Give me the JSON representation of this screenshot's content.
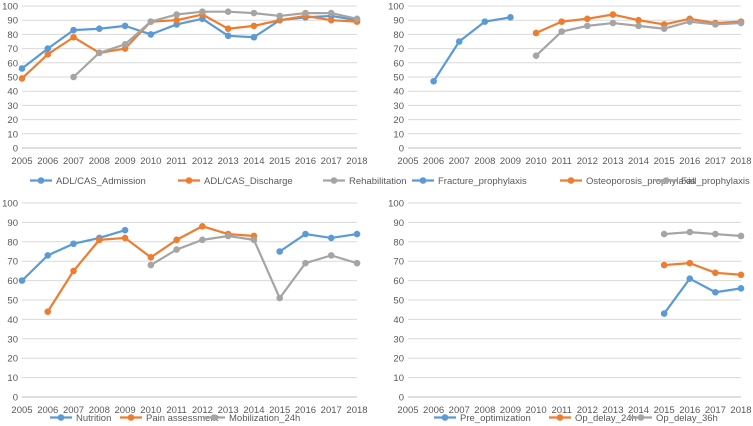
{
  "colors": {
    "blue": "#5B9BD5",
    "orange": "#ED7D31",
    "gray": "#A5A5A5",
    "grid": "#D9D9D9",
    "text": "#595959"
  },
  "chart_data": [
    {
      "type": "line",
      "title": "",
      "x": [
        "2005",
        "2006",
        "2007",
        "2008",
        "2009",
        "2010",
        "2011",
        "2012",
        "2013",
        "2014",
        "2015",
        "2016",
        "2017",
        "2018"
      ],
      "ylim": [
        0,
        100
      ],
      "yticks": [
        0,
        10,
        20,
        30,
        40,
        50,
        60,
        70,
        80,
        90,
        100
      ],
      "ytick_labels": [
        "0",
        "10",
        "20",
        "30",
        "40",
        "50",
        "60",
        "70",
        "80",
        "90",
        "100"
      ],
      "grid": true,
      "legend": "bottom",
      "series": [
        {
          "name": "ADL/CAS_Admission",
          "color": "blue",
          "values": [
            56,
            70,
            83,
            84,
            86,
            80,
            87,
            91,
            79,
            78,
            90,
            92,
            93,
            90
          ]
        },
        {
          "name": "ADL/CAS_Discharge",
          "color": "orange",
          "values": [
            49,
            66,
            78,
            67,
            70,
            89,
            90,
            94,
            84,
            86,
            90,
            93,
            90,
            89
          ]
        },
        {
          "name": "Rehabilitation",
          "color": "gray",
          "values": [
            null,
            null,
            50,
            67,
            73,
            89,
            94,
            96,
            96,
            95,
            93,
            95,
            95,
            91
          ]
        }
      ]
    },
    {
      "type": "line",
      "title": "",
      "x": [
        "2005",
        "2006",
        "2007",
        "2008",
        "2009",
        "2010",
        "2011",
        "2012",
        "2013",
        "2014",
        "2015",
        "2016",
        "2017",
        "2018"
      ],
      "ylim": [
        0,
        100
      ],
      "yticks": [
        0,
        10,
        20,
        30,
        40,
        50,
        60,
        70,
        80,
        90,
        100
      ],
      "ytick_labels": [
        "0",
        "10",
        "20",
        "30",
        "40",
        "50",
        "60",
        "70",
        "80",
        "90",
        "100"
      ],
      "grid": true,
      "legend": "bottom",
      "series": [
        {
          "name": "Fracture_prophylaxis",
          "color": "blue",
          "values": [
            null,
            47,
            75,
            89,
            92,
            null,
            null,
            null,
            null,
            null,
            null,
            null,
            null,
            null
          ]
        },
        {
          "name": "Osteoporosis_prophylaxis",
          "color": "orange",
          "values": [
            null,
            null,
            null,
            null,
            null,
            81,
            89,
            91,
            94,
            90,
            87,
            91,
            88,
            89
          ]
        },
        {
          "name": "Fall_prophylaxis",
          "color": "gray",
          "values": [
            null,
            null,
            null,
            null,
            null,
            65,
            82,
            86,
            88,
            86,
            84,
            89,
            87,
            88
          ]
        }
      ]
    },
    {
      "type": "line",
      "title": "",
      "x": [
        "2005",
        "2006",
        "2007",
        "2008",
        "2009",
        "2010",
        "2011",
        "2012",
        "2013",
        "2014",
        "2015",
        "2016",
        "2017",
        "2018"
      ],
      "ylim": [
        0,
        100
      ],
      "yticks": [
        0,
        10,
        20,
        30,
        40,
        50,
        60,
        70,
        80,
        90,
        100
      ],
      "ytick_labels": [
        "0",
        "10",
        "20",
        "30",
        "40",
        "50",
        "60",
        "70",
        "80",
        "90",
        "100"
      ],
      "grid": true,
      "legend": "bottom",
      "series": [
        {
          "name": "Nutrition",
          "color": "blue",
          "values": [
            60,
            73,
            79,
            82,
            86,
            null,
            null,
            null,
            null,
            null,
            75,
            84,
            82,
            84
          ]
        },
        {
          "name": "Pain assessment",
          "color": "orange",
          "values": [
            null,
            44,
            65,
            81,
            82,
            72,
            81,
            88,
            84,
            83,
            null,
            null,
            null,
            null
          ]
        },
        {
          "name": "Mobilization_24h",
          "color": "gray",
          "values": [
            null,
            null,
            null,
            null,
            null,
            68,
            76,
            81,
            83,
            81,
            51,
            69,
            73,
            69
          ]
        }
      ]
    },
    {
      "type": "line",
      "title": "",
      "x": [
        "2005",
        "2006",
        "2007",
        "2008",
        "2009",
        "2010",
        "2011",
        "2012",
        "2013",
        "2014",
        "2015",
        "2016",
        "2017",
        "2018"
      ],
      "ylim": [
        0,
        100
      ],
      "yticks": [
        0,
        10,
        20,
        30,
        40,
        50,
        60,
        70,
        80,
        90,
        100
      ],
      "ytick_labels": [
        "0",
        "10",
        "20",
        "30",
        "40",
        "50",
        "60",
        "70",
        "80",
        "90",
        "100"
      ],
      "grid": true,
      "legend": "bottom",
      "series": [
        {
          "name": "Pre_optimization",
          "color": "blue",
          "values": [
            null,
            null,
            null,
            null,
            null,
            null,
            null,
            null,
            null,
            null,
            43,
            61,
            54,
            56
          ]
        },
        {
          "name": "Op_delay_24h",
          "color": "orange",
          "values": [
            null,
            null,
            null,
            null,
            null,
            null,
            null,
            null,
            null,
            null,
            68,
            69,
            64,
            63
          ]
        },
        {
          "name": "Op_delay_36h",
          "color": "gray",
          "values": [
            null,
            null,
            null,
            null,
            null,
            null,
            null,
            null,
            null,
            null,
            84,
            85,
            84,
            83
          ]
        }
      ]
    }
  ]
}
